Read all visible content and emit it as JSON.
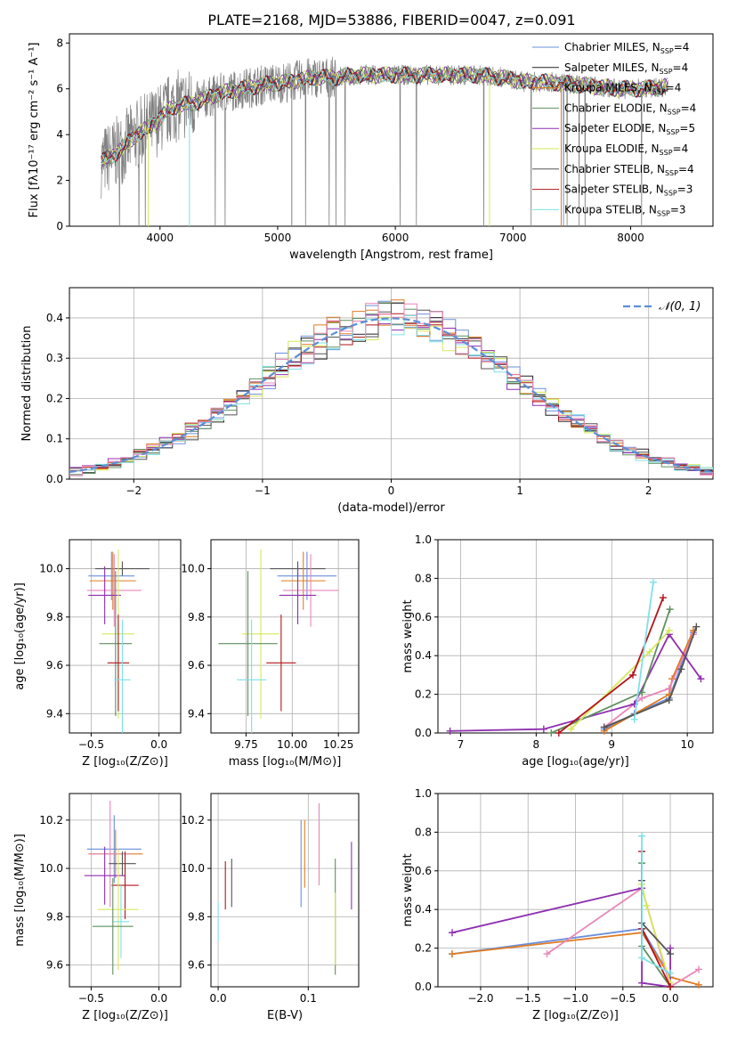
{
  "figure_title": "PLATE=2168, MJD=53886, FIBERID=0047, z=0.091",
  "models": [
    {
      "name": "Chabrier MILES, N",
      "n": "=4",
      "color": "#6b8fdc"
    },
    {
      "name": "Salpeter MILES, N",
      "n": "=4",
      "color": "#222222"
    },
    {
      "name": "Kroupa MILES, N",
      "n": "=4",
      "color": "#e07b22"
    },
    {
      "name": "Chabrier ELODIE, N",
      "n": "=4",
      "color": "#5f8f5f"
    },
    {
      "name": "Salpeter ELODIE, N",
      "n": "=5",
      "color": "#8e2fb0"
    },
    {
      "name": "Kroupa ELODIE, N",
      "n": "=4",
      "color": "#d6e85a"
    },
    {
      "name": "Chabrier STELIB, N",
      "n": "=4",
      "color": "#555555"
    },
    {
      "name": "Salpeter STELIB, N",
      "n": "=3",
      "color": "#b0151b"
    },
    {
      "name": "Kroupa STELIB, N",
      "n": "=3",
      "color": "#7fe0e8"
    }
  ],
  "extra_colors": {
    "pink": "#e986b8",
    "red": "#d02020",
    "data_gray": "#808080",
    "normal_line": "#5b8fd6"
  },
  "chart_data": [
    {
      "id": "spectrum",
      "type": "line",
      "xlabel": "wavelength [Angstrom, rest frame]",
      "ylabel": "Flux [fλ10⁻¹⁷ erg cm⁻² s⁻¹ A⁻¹]",
      "xlim": [
        3230,
        8700
      ],
      "ylim": [
        0,
        8.4
      ],
      "xticks": [
        4000,
        5000,
        6000,
        7000,
        8000
      ],
      "yticks": [
        0,
        2,
        4,
        6,
        8
      ],
      "legend_position": "right",
      "series_continuum": {
        "x": [
          3500,
          3600,
          3700,
          3800,
          3900,
          4000,
          4100,
          4300,
          4500,
          4700,
          4900,
          5100,
          5300,
          5500,
          5700,
          5900,
          6100,
          6300,
          6500,
          6700,
          6900,
          7100,
          7300,
          7500,
          7700,
          7900,
          8100,
          8300
        ],
        "y": [
          2.8,
          3.1,
          3.5,
          4.0,
          4.3,
          4.7,
          5.2,
          5.4,
          5.8,
          6.0,
          6.2,
          6.3,
          6.5,
          6.5,
          6.6,
          6.6,
          6.6,
          6.6,
          6.6,
          6.6,
          6.5,
          6.3,
          6.3,
          6.2,
          6.1,
          6.0,
          6.0,
          6.1
        ]
      }
    },
    {
      "id": "residuals",
      "type": "bar",
      "xlabel": "(data-model)/error",
      "ylabel": "Normed distribution",
      "xlim": [
        -2.5,
        2.5
      ],
      "ylim": [
        0,
        0.475
      ],
      "xticks": [
        -2,
        -1,
        0,
        1,
        2
      ],
      "yticks": [
        0.0,
        0.1,
        0.2,
        0.3,
        0.4
      ],
      "legend_label": "𝒩(0, 1)"
    },
    {
      "id": "age_vs_Z",
      "type": "scatter",
      "xlabel": "Z [log₁₀(Z/Z⊙)]",
      "ylabel": "age  [log₁₀(age/yr)]",
      "xlim": [
        -0.66,
        0.16
      ],
      "ylim": [
        9.32,
        10.12
      ],
      "xticks": [
        -0.5,
        0.0
      ],
      "ytick_labels": [
        "9.4",
        "9.6",
        "9.8",
        "10.0"
      ],
      "yticks": [
        9.4,
        9.6,
        9.8,
        10.0
      ],
      "points": [
        {
          "c": "#555555",
          "x": -0.27,
          "y": 10.0,
          "xe": 0.2,
          "ye": 0.03
        },
        {
          "c": "#6b8fdc",
          "x": -0.35,
          "y": 9.97,
          "xe": 0.17,
          "ye": 0.1
        },
        {
          "c": "#e07b22",
          "x": -0.34,
          "y": 9.95,
          "xe": 0.17,
          "ye": 0.12
        },
        {
          "c": "#e986b8",
          "x": -0.33,
          "y": 9.91,
          "xe": 0.2,
          "ye": 0.15
        },
        {
          "c": "#8e2fb0",
          "x": -0.4,
          "y": 9.89,
          "xe": 0.12,
          "ye": 0.12
        },
        {
          "c": "#d6e85a",
          "x": -0.3,
          "y": 9.73,
          "xe": 0.12,
          "ye": 0.35
        },
        {
          "c": "#5f8f5f",
          "x": -0.32,
          "y": 9.69,
          "xe": 0.12,
          "ye": 0.3
        },
        {
          "c": "#b0151b",
          "x": -0.3,
          "y": 9.61,
          "xe": 0.08,
          "ye": 0.2
        },
        {
          "c": "#7fe0e8",
          "x": -0.27,
          "y": 9.54,
          "xe": 0.06,
          "ye": 0.25
        }
      ]
    },
    {
      "id": "age_vs_mass",
      "type": "scatter",
      "xlabel": "mass [log₁₀(M/M⊙)]",
      "xlim": [
        9.56,
        10.36
      ],
      "ylim": [
        9.32,
        10.12
      ],
      "xtick_labels": [
        "9.75",
        "10.00",
        "10.25"
      ],
      "xticks": [
        9.75,
        10.0,
        10.25
      ],
      "ytick_labels": [
        "9.4",
        "9.6",
        "9.8",
        "10.0"
      ],
      "yticks": [
        9.4,
        9.6,
        9.8,
        10.0
      ],
      "points": [
        {
          "c": "#555555",
          "x": 10.03,
          "y": 10.0,
          "xe": 0.15,
          "ye": 0.03
        },
        {
          "c": "#6b8fdc",
          "x": 10.08,
          "y": 9.97,
          "xe": 0.16,
          "ye": 0.1
        },
        {
          "c": "#e07b22",
          "x": 10.06,
          "y": 9.95,
          "xe": 0.12,
          "ye": 0.12
        },
        {
          "c": "#e986b8",
          "x": 10.1,
          "y": 9.91,
          "xe": 0.15,
          "ye": 0.15
        },
        {
          "c": "#8e2fb0",
          "x": 10.03,
          "y": 9.89,
          "xe": 0.1,
          "ye": 0.12
        },
        {
          "c": "#d6e85a",
          "x": 9.83,
          "y": 9.73,
          "xe": 0.1,
          "ye": 0.35
        },
        {
          "c": "#5f8f5f",
          "x": 9.76,
          "y": 9.69,
          "xe": 0.16,
          "ye": 0.3
        },
        {
          "c": "#b0151b",
          "x": 9.94,
          "y": 9.61,
          "xe": 0.08,
          "ye": 0.2
        },
        {
          "c": "#7fe0e8",
          "x": 9.78,
          "y": 9.54,
          "xe": 0.08,
          "ye": 0.25
        }
      ]
    },
    {
      "id": "weight_vs_age",
      "type": "line",
      "xlabel": "age  [log₁₀(age/yr)]",
      "ylabel": "mass weight",
      "xlim": [
        6.7,
        10.34
      ],
      "ylim": [
        0,
        1
      ],
      "xticks": [
        7,
        8,
        9,
        10
      ],
      "yticks": [
        0.0,
        0.2,
        0.4,
        0.6,
        0.8,
        1.0
      ],
      "series": [
        {
          "c": "#6b8fdc",
          "pts": [
            [
              8.9,
              0.02
            ],
            [
              9.3,
              0.1
            ],
            [
              9.76,
              0.18
            ],
            [
              10.08,
              0.52
            ]
          ]
        },
        {
          "c": "#e07b22",
          "pts": [
            [
              8.9,
              0.01
            ],
            [
              9.76,
              0.2
            ],
            [
              9.8,
              0.28
            ],
            [
              10.08,
              0.53
            ]
          ]
        },
        {
          "c": "#e986b8",
          "pts": [
            [
              8.9,
              0.03
            ],
            [
              9.4,
              0.18
            ],
            [
              9.76,
              0.23
            ],
            [
              10.08,
              0.51
            ]
          ]
        },
        {
          "c": "#8e2fb0",
          "pts": [
            [
              6.86,
              0.01
            ],
            [
              8.1,
              0.02
            ],
            [
              9.3,
              0.15
            ],
            [
              9.76,
              0.51
            ],
            [
              10.18,
              0.28
            ]
          ]
        },
        {
          "c": "#5f8f5f",
          "pts": [
            [
              8.2,
              0.0
            ],
            [
              9.4,
              0.21
            ],
            [
              9.77,
              0.64
            ]
          ]
        },
        {
          "c": "#d6e85a",
          "pts": [
            [
              8.46,
              0.02
            ],
            [
              9.5,
              0.42
            ],
            [
              9.76,
              0.53
            ]
          ]
        },
        {
          "c": "#555555",
          "pts": [
            [
              8.9,
              0.03
            ],
            [
              9.76,
              0.17
            ],
            [
              9.92,
              0.33
            ],
            [
              10.12,
              0.55
            ]
          ]
        },
        {
          "c": "#b0151b",
          "pts": [
            [
              8.3,
              0.0
            ],
            [
              9.28,
              0.3
            ],
            [
              9.68,
              0.7
            ]
          ]
        },
        {
          "c": "#7fe0e8",
          "pts": [
            [
              9.3,
              0.07
            ],
            [
              9.55,
              0.78
            ]
          ]
        }
      ]
    },
    {
      "id": "mass_vs_Z",
      "type": "scatter",
      "xlabel": "Z [log₁₀(Z/Z⊙)]",
      "ylabel": "mass [log₁₀(M/M⊙)]",
      "xlim": [
        -0.66,
        0.16
      ],
      "ylim": [
        9.51,
        10.31
      ],
      "xticks": [
        -0.5,
        0.0
      ],
      "ytick_labels": [
        "9.6",
        "9.8",
        "10.0",
        "10.2"
      ],
      "yticks": [
        9.6,
        9.8,
        10.0,
        10.2
      ],
      "points": [
        {
          "c": "#6b8fdc",
          "x": -0.33,
          "y": 10.08,
          "xe": 0.2,
          "ye": 0.14
        },
        {
          "c": "#e07b22",
          "x": -0.32,
          "y": 10.06,
          "xe": 0.2,
          "ye": 0.1
        },
        {
          "c": "#e986b8",
          "x": -0.36,
          "y": 10.06,
          "xe": 0.15,
          "ye": 0.22
        },
        {
          "c": "#555555",
          "x": -0.27,
          "y": 10.02,
          "xe": 0.1,
          "ye": 0.05
        },
        {
          "c": "#8e2fb0",
          "x": -0.4,
          "y": 9.97,
          "xe": 0.15,
          "ye": 0.12
        },
        {
          "c": "#b0151b",
          "x": -0.25,
          "y": 9.93,
          "xe": 0.1,
          "ye": 0.14
        },
        {
          "c": "#d6e85a",
          "x": -0.3,
          "y": 9.83,
          "xe": 0.15,
          "ye": 0.25
        },
        {
          "c": "#7fe0e8",
          "x": -0.28,
          "y": 9.78,
          "xe": 0.06,
          "ye": 0.15
        },
        {
          "c": "#5f8f5f",
          "x": -0.34,
          "y": 9.76,
          "xe": 0.15,
          "ye": 0.2
        }
      ]
    },
    {
      "id": "mass_vs_EBV",
      "type": "scatter",
      "xlabel": "E(B-V)",
      "xlim": [
        -0.008,
        0.156
      ],
      "ylim": [
        9.51,
        10.31
      ],
      "xticks": [
        0.0,
        0.1
      ],
      "ytick_labels": [
        "9.6",
        "9.8",
        "10.0",
        "10.2"
      ],
      "yticks": [
        9.6,
        9.8,
        10.0,
        10.2
      ],
      "points": [
        {
          "c": "#7fe0e8",
          "x": 0.0,
          "y": 9.78,
          "ye": 0.08
        },
        {
          "c": "#b0151b",
          "x": 0.008,
          "y": 9.93,
          "ye": 0.1
        },
        {
          "c": "#555555",
          "x": 0.015,
          "y": 9.94,
          "ye": 0.1
        },
        {
          "c": "#6b8fdc",
          "x": 0.092,
          "y": 10.02,
          "ye": 0.18
        },
        {
          "c": "#e07b22",
          "x": 0.096,
          "y": 10.06,
          "ye": 0.14
        },
        {
          "c": "#e986b8",
          "x": 0.112,
          "y": 10.1,
          "ye": 0.17
        },
        {
          "c": "#5f8f5f",
          "x": 0.13,
          "y": 9.8,
          "ye": 0.24
        },
        {
          "c": "#d6e85a",
          "x": 0.13,
          "y": 9.75,
          "ye": 0.15
        },
        {
          "c": "#8e2fb0",
          "x": 0.148,
          "y": 9.97,
          "ye": 0.14
        }
      ]
    },
    {
      "id": "weight_vs_Z",
      "type": "line",
      "xlabel": "Z [log₁₀(Z/Z⊙)]",
      "ylabel": "mass weight",
      "xlim": [
        -2.45,
        0.45
      ],
      "ylim": [
        0,
        1
      ],
      "xticks": [
        -2.0,
        -1.5,
        -1.0,
        -0.5,
        0.0
      ],
      "yticks": [
        0.0,
        0.2,
        0.4,
        0.6,
        0.8,
        1.0
      ],
      "series": [
        {
          "c": "#6b8fdc",
          "pts": [
            [
              -2.3,
              0.17
            ],
            [
              -0.3,
              0.3
            ],
            [
              0.0,
              0.05
            ]
          ]
        },
        {
          "c": "#e07b22",
          "pts": [
            [
              -2.3,
              0.17
            ],
            [
              -0.3,
              0.28
            ],
            [
              0.0,
              0.05
            ],
            [
              0.3,
              0.01
            ]
          ]
        },
        {
          "c": "#e986b8",
          "pts": [
            [
              -1.3,
              0.17
            ],
            [
              -0.3,
              0.51
            ],
            [
              0.0,
              0.0
            ],
            [
              0.3,
              0.09
            ]
          ]
        },
        {
          "c": "#8e2fb0",
          "pts": [
            [
              -2.3,
              0.28
            ],
            [
              -0.3,
              0.51
            ],
            [
              -0.3,
              0.02
            ],
            [
              0.0,
              0.0
            ],
            [
              0.0,
              0.2
            ]
          ]
        },
        {
          "c": "#5f8f5f",
          "pts": [
            [
              -0.3,
              0.64
            ],
            [
              -0.3,
              0.21
            ],
            [
              0.0,
              0.0
            ]
          ]
        },
        {
          "c": "#d6e85a",
          "pts": [
            [
              -0.3,
              0.53
            ],
            [
              -0.25,
              0.42
            ],
            [
              0.0,
              0.02
            ]
          ]
        },
        {
          "c": "#555555",
          "pts": [
            [
              -0.3,
              0.55
            ],
            [
              -0.3,
              0.33
            ],
            [
              0.0,
              0.17
            ]
          ]
        },
        {
          "c": "#b0151b",
          "pts": [
            [
              -0.3,
              0.7
            ],
            [
              -0.3,
              0.3
            ],
            [
              0.0,
              0.0
            ]
          ]
        },
        {
          "c": "#7fe0e8",
          "pts": [
            [
              -0.3,
              0.78
            ],
            [
              -0.3,
              0.15
            ],
            [
              0.0,
              0.07
            ]
          ]
        }
      ]
    }
  ]
}
